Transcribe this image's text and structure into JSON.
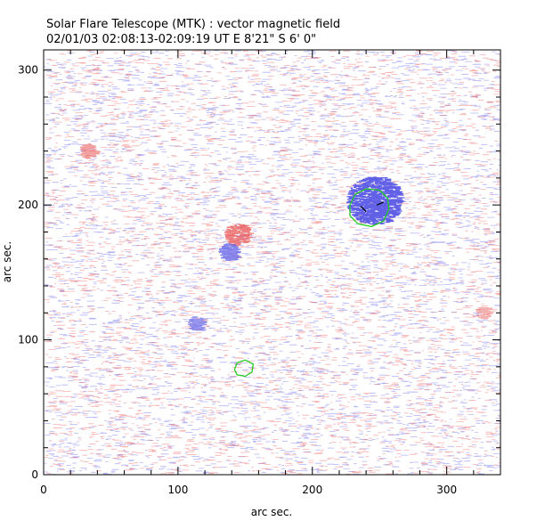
{
  "chart_data": {
    "type": "magnetogram",
    "title": "Solar Flare Telescope (MTK) : vector magnetic field",
    "subtitle": "02/01/03  02:08:13-02:09:19 UT    E 8'21\"   S 6' 0\"",
    "xlabel": "arc sec.",
    "ylabel": "arc sec.",
    "xlim": [
      0,
      340
    ],
    "ylim": [
      0,
      315
    ],
    "xticks": [
      0,
      100,
      200,
      300
    ],
    "yticks": [
      0,
      100,
      200,
      300
    ],
    "field_colors": {
      "positive": "#e85050",
      "negative": "#5a5ae6",
      "contour": "#22cc22",
      "vector": "#000000"
    },
    "patches": [
      {
        "polarity": "negative",
        "x": 245,
        "y": 203,
        "r": 20,
        "strength": 0.95
      },
      {
        "polarity": "positive",
        "x": 143,
        "y": 178,
        "r": 9,
        "strength": 0.7
      },
      {
        "polarity": "negative",
        "x": 137,
        "y": 165,
        "r": 7,
        "strength": 0.7
      },
      {
        "polarity": "negative",
        "x": 113,
        "y": 112,
        "r": 6,
        "strength": 0.6
      },
      {
        "polarity": "positive",
        "x": 32,
        "y": 240,
        "r": 6,
        "strength": 0.5
      },
      {
        "polarity": "positive",
        "x": 326,
        "y": 120,
        "r": 5,
        "strength": 0.4
      }
    ],
    "contours": [
      {
        "name": "contour-large",
        "points": [
          [
            228,
            200
          ],
          [
            232,
            208
          ],
          [
            240,
            212
          ],
          [
            250,
            211
          ],
          [
            256,
            205
          ],
          [
            257,
            197
          ],
          [
            253,
            188
          ],
          [
            244,
            184
          ],
          [
            234,
            186
          ],
          [
            228,
            192
          ],
          [
            228,
            200
          ]
        ]
      },
      {
        "name": "contour-small",
        "points": [
          [
            142,
            78
          ],
          [
            144,
            83
          ],
          [
            150,
            85
          ],
          [
            156,
            82
          ],
          [
            155,
            76
          ],
          [
            150,
            73
          ],
          [
            144,
            74
          ],
          [
            142,
            78
          ]
        ]
      }
    ],
    "vectors": [
      {
        "x1": 236,
        "y1": 199,
        "x2": 240,
        "y2": 195
      },
      {
        "x1": 248,
        "y1": 200,
        "x2": 253,
        "y2": 202
      }
    ]
  }
}
